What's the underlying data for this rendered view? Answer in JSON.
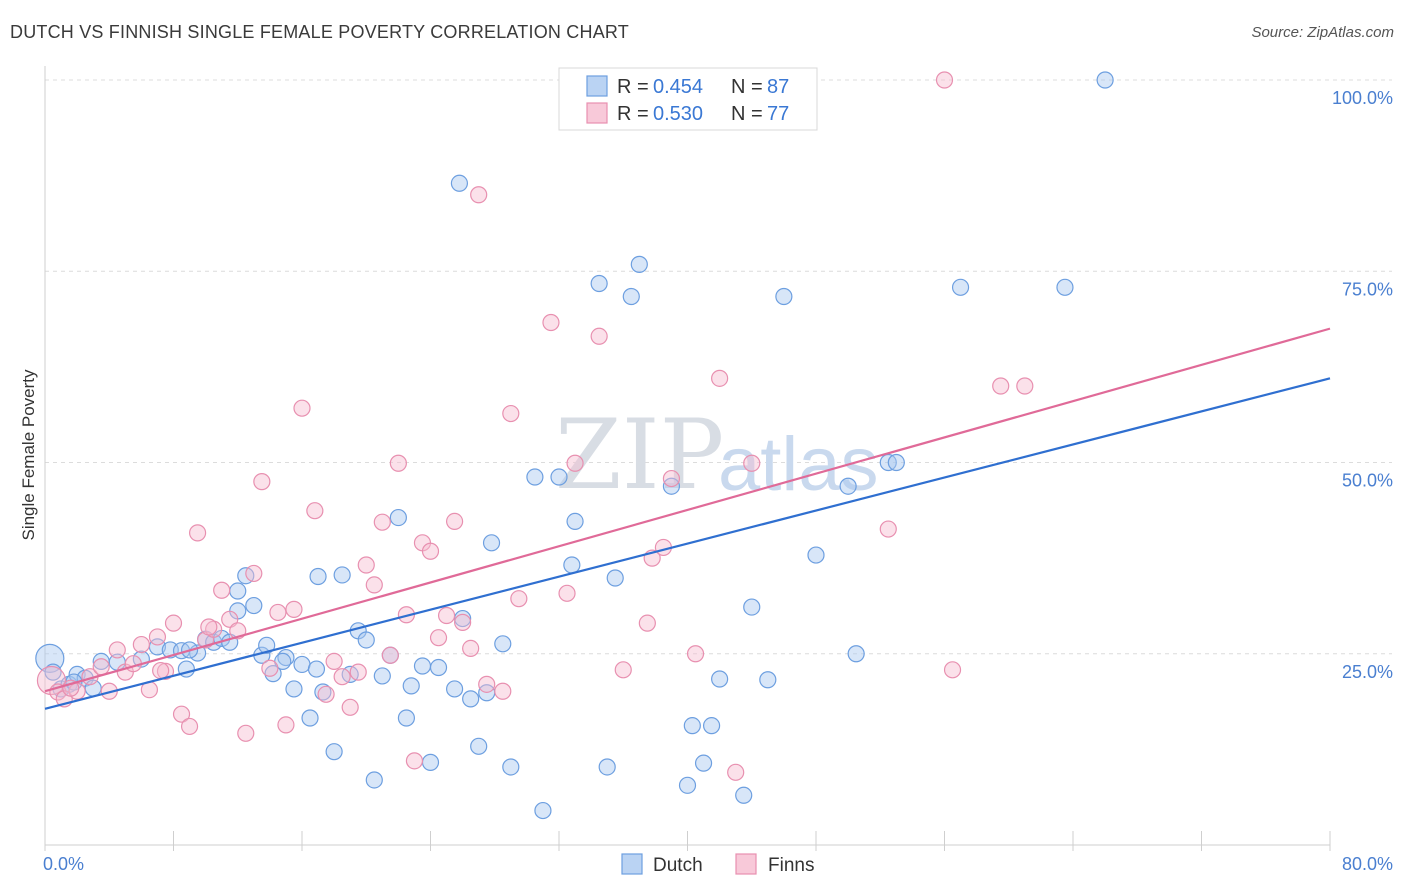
{
  "header": {
    "title": "DUTCH VS FINNISH SINGLE FEMALE POVERTY CORRELATION CHART",
    "source": "Source: ZipAtlas.com"
  },
  "watermark": {
    "zip": "ZIP",
    "atlas": "atlas"
  },
  "colors": {
    "dutch_fill": "#a9c8f0",
    "dutch_stroke": "#6d9fe0",
    "dutch_line": "#2f6fd0",
    "finns_fill": "#f6bcd0",
    "finns_stroke": "#e890b0",
    "finns_line": "#e06a98",
    "grid": "#dcdcdc",
    "tick_text": "#4a7fd0"
  },
  "legend": {
    "r_label": "R =",
    "n_label": "N =",
    "entries": [
      {
        "key": "dutch",
        "r": "0.454",
        "n": "87"
      },
      {
        "key": "finns",
        "r": "0.530",
        "n": "77"
      }
    ]
  },
  "chart_data": {
    "type": "scatter",
    "title": "DUTCH VS FINNISH SINGLE FEMALE POVERTY CORRELATION CHART",
    "xlabel": "",
    "ylabel": "Single Female Poverty",
    "xlim": [
      0,
      80
    ],
    "ylim": [
      0,
      100
    ],
    "x_tick_labels": [
      "0.0%",
      "80.0%"
    ],
    "y_ticks": [
      25,
      50,
      75,
      100
    ],
    "y_tick_labels": [
      "25.0%",
      "50.0%",
      "75.0%",
      "100.0%"
    ],
    "grid": "horizontal dashed",
    "legend_placement": "top-center",
    "series": [
      {
        "name": "Dutch",
        "color": "#6d9fe0",
        "trend": {
          "x0": 0,
          "y0": 17.8,
          "x1": 80,
          "y1": 61.0
        },
        "points": [
          [
            0.3,
            24.4
          ],
          [
            0.5,
            22.6
          ],
          [
            1.0,
            20.4
          ],
          [
            1.5,
            21.0
          ],
          [
            2.0,
            22.3
          ],
          [
            2.5,
            21.8
          ],
          [
            3.5,
            24.0
          ],
          [
            4.5,
            23.9
          ],
          [
            6.0,
            24.3
          ],
          [
            7.0,
            25.9
          ],
          [
            7.8,
            25.5
          ],
          [
            8.5,
            25.4
          ],
          [
            8.8,
            23.0
          ],
          [
            9.5,
            25.1
          ],
          [
            10.0,
            26.9
          ],
          [
            10.5,
            26.5
          ],
          [
            11.0,
            27.0
          ],
          [
            12.0,
            33.2
          ],
          [
            12.0,
            30.6
          ],
          [
            12.5,
            35.2
          ],
          [
            13.0,
            31.3
          ],
          [
            13.5,
            24.8
          ],
          [
            13.8,
            26.1
          ],
          [
            14.2,
            22.4
          ],
          [
            15.0,
            24.5
          ],
          [
            15.5,
            20.4
          ],
          [
            16.0,
            23.6
          ],
          [
            16.5,
            16.6
          ],
          [
            17.0,
            35.1
          ],
          [
            17.3,
            20.0
          ],
          [
            18.0,
            12.2
          ],
          [
            18.5,
            35.3
          ],
          [
            19.0,
            22.3
          ],
          [
            19.5,
            28.0
          ],
          [
            20.0,
            26.8
          ],
          [
            20.5,
            8.5
          ],
          [
            21.0,
            22.1
          ],
          [
            21.5,
            24.8
          ],
          [
            22.0,
            42.8
          ],
          [
            22.5,
            16.6
          ],
          [
            22.8,
            20.8
          ],
          [
            23.5,
            23.4
          ],
          [
            24.0,
            10.8
          ],
          [
            24.5,
            23.2
          ],
          [
            25.5,
            20.4
          ],
          [
            25.8,
            86.5
          ],
          [
            26.0,
            29.6
          ],
          [
            26.5,
            19.1
          ],
          [
            27.0,
            12.9
          ],
          [
            27.5,
            19.9
          ],
          [
            27.8,
            39.5
          ],
          [
            28.5,
            26.3
          ],
          [
            29.0,
            10.2
          ],
          [
            30.5,
            48.1
          ],
          [
            31.0,
            4.5
          ],
          [
            32.0,
            48.1
          ],
          [
            32.8,
            36.6
          ],
          [
            33.0,
            42.3
          ],
          [
            34.5,
            73.4
          ],
          [
            35.0,
            10.2
          ],
          [
            35.5,
            34.9
          ],
          [
            36.5,
            71.7
          ],
          [
            37.0,
            75.9
          ],
          [
            39.0,
            46.9
          ],
          [
            40.0,
            7.8
          ],
          [
            40.3,
            15.6
          ],
          [
            41.0,
            10.7
          ],
          [
            41.5,
            15.6
          ],
          [
            42.0,
            21.7
          ],
          [
            43.5,
            6.5
          ],
          [
            44.0,
            31.1
          ],
          [
            45.0,
            21.6
          ],
          [
            46.0,
            71.7
          ],
          [
            48.0,
            37.9
          ],
          [
            50.0,
            46.9
          ],
          [
            50.5,
            25.0
          ],
          [
            52.5,
            50.0
          ],
          [
            53.0,
            50.0
          ],
          [
            57.0,
            72.9
          ],
          [
            63.5,
            72.9
          ],
          [
            66.0,
            100.0
          ],
          [
            9.0,
            25.5
          ],
          [
            11.5,
            26.5
          ],
          [
            14.8,
            24.0
          ],
          [
            16.9,
            23.0
          ],
          [
            3.0,
            20.5
          ],
          [
            1.8,
            21.3
          ]
        ]
      },
      {
        "name": "Finns",
        "color": "#e890b0",
        "trend": {
          "x0": 0,
          "y0": 20.1,
          "x1": 80,
          "y1": 67.5
        },
        "points": [
          [
            0.4,
            21.5
          ],
          [
            0.8,
            20.0
          ],
          [
            1.2,
            19.1
          ],
          [
            2.0,
            20.1
          ],
          [
            2.8,
            22.0
          ],
          [
            3.5,
            23.3
          ],
          [
            4.0,
            20.1
          ],
          [
            4.5,
            25.5
          ],
          [
            5.0,
            22.6
          ],
          [
            5.5,
            23.7
          ],
          [
            6.0,
            26.2
          ],
          [
            6.5,
            20.3
          ],
          [
            7.0,
            27.2
          ],
          [
            7.5,
            22.7
          ],
          [
            8.0,
            29.0
          ],
          [
            8.5,
            17.1
          ],
          [
            9.0,
            15.5
          ],
          [
            9.5,
            40.8
          ],
          [
            10.0,
            26.8
          ],
          [
            10.5,
            28.2
          ],
          [
            11.0,
            33.3
          ],
          [
            11.5,
            29.5
          ],
          [
            12.0,
            28.0
          ],
          [
            12.5,
            14.6
          ],
          [
            13.0,
            35.5
          ],
          [
            13.5,
            47.5
          ],
          [
            14.0,
            23.1
          ],
          [
            14.5,
            30.4
          ],
          [
            15.0,
            15.7
          ],
          [
            15.5,
            30.8
          ],
          [
            16.0,
            57.1
          ],
          [
            16.8,
            43.7
          ],
          [
            17.5,
            19.7
          ],
          [
            18.0,
            24.0
          ],
          [
            18.5,
            22.0
          ],
          [
            19.0,
            18.0
          ],
          [
            19.5,
            22.6
          ],
          [
            20.0,
            36.6
          ],
          [
            20.5,
            34.0
          ],
          [
            21.0,
            42.2
          ],
          [
            21.5,
            24.8
          ],
          [
            22.0,
            49.9
          ],
          [
            22.5,
            30.1
          ],
          [
            23.0,
            11.0
          ],
          [
            23.5,
            39.5
          ],
          [
            24.0,
            38.4
          ],
          [
            24.5,
            27.1
          ],
          [
            25.0,
            30.0
          ],
          [
            25.5,
            42.3
          ],
          [
            26.0,
            29.1
          ],
          [
            26.5,
            25.7
          ],
          [
            27.0,
            85.0
          ],
          [
            27.5,
            21.0
          ],
          [
            28.5,
            20.1
          ],
          [
            29.0,
            56.4
          ],
          [
            29.5,
            32.2
          ],
          [
            31.5,
            68.3
          ],
          [
            32.5,
            32.9
          ],
          [
            33.0,
            49.9
          ],
          [
            34.5,
            66.5
          ],
          [
            36.0,
            22.9
          ],
          [
            37.5,
            29.0
          ],
          [
            37.8,
            37.5
          ],
          [
            38.5,
            38.9
          ],
          [
            39.0,
            47.9
          ],
          [
            40.5,
            25.0
          ],
          [
            42.0,
            61.0
          ],
          [
            43.0,
            9.5
          ],
          [
            44.0,
            49.9
          ],
          [
            52.5,
            41.3
          ],
          [
            56.0,
            100.0
          ],
          [
            56.5,
            22.9
          ],
          [
            59.5,
            60.0
          ],
          [
            61.0,
            60.0
          ],
          [
            10.2,
            28.5
          ],
          [
            7.2,
            22.8
          ],
          [
            1.6,
            20.5
          ]
        ]
      }
    ]
  },
  "bottom_legend": [
    {
      "key": "dutch",
      "label": "Dutch"
    },
    {
      "key": "finns",
      "label": "Finns"
    }
  ]
}
